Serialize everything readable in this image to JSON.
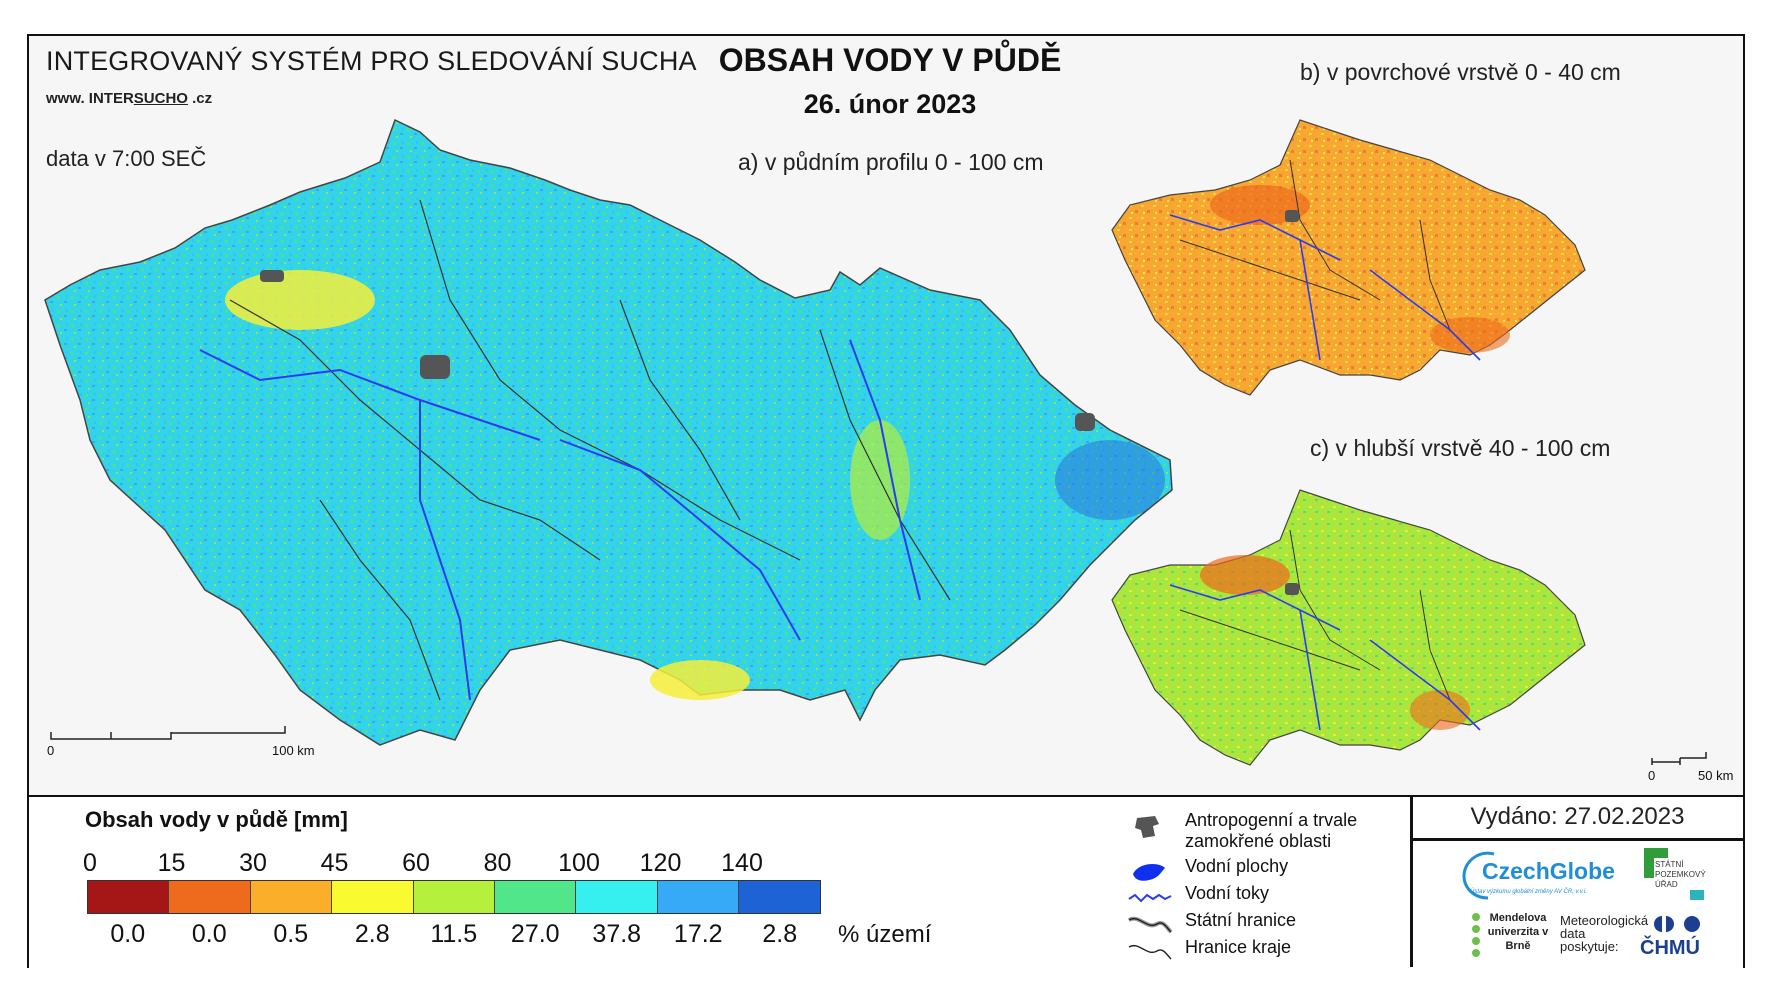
{
  "header": {
    "system_title": "INTEGROVANÝ SYSTÉM PRO SLEDOVÁNÍ SUCHA",
    "website_prefix": "www. INTER",
    "website_brand": "SUCHO",
    "website_suffix": " .cz",
    "data_time": "data v 7:00 SEČ",
    "main_title": "OBSAH VODY V PŮDĚ",
    "date": "26. únor 2023"
  },
  "maps": {
    "a_label": "a) v půdním profilu 0 - 100 cm",
    "b_label": "b) v povrchové vrstvě 0 - 40 cm",
    "c_label": "c) v hlubší vrstvě 40 - 100 cm",
    "scale_main": {
      "zero": "0",
      "end": "100 km"
    },
    "scale_small": {
      "zero": "0",
      "end": "50 km"
    }
  },
  "legend": {
    "title": "Obsah vody v půdě  [mm]",
    "ticks": [
      "0",
      "15",
      "30",
      "45",
      "60",
      "80",
      "100",
      "120",
      "140"
    ],
    "classes": [
      {
        "color": "#a51616",
        "percent": "0.0"
      },
      {
        "color": "#ee6a1d",
        "percent": "0.0"
      },
      {
        "color": "#fbae2a",
        "percent": "0.5"
      },
      {
        "color": "#fafa30",
        "percent": "2.8"
      },
      {
        "color": "#b4f03c",
        "percent": "11.5"
      },
      {
        "color": "#52e68a",
        "percent": "27.0"
      },
      {
        "color": "#36f0f0",
        "percent": "37.8"
      },
      {
        "color": "#36aaf6",
        "percent": "17.2"
      },
      {
        "color": "#1d63d6",
        "percent": "2.8"
      }
    ],
    "percent_unit": "% území"
  },
  "key": {
    "items": [
      {
        "icon": "urban-area-icon",
        "label_1": "Antropogenní a trvale",
        "label_2": "zamokřené oblasti"
      },
      {
        "icon": "water-body-icon",
        "label_1": "Vodní plochy",
        "label_2": ""
      },
      {
        "icon": "river-icon",
        "label_1": "Vodní toky",
        "label_2": ""
      },
      {
        "icon": "state-border-icon",
        "label_1": "Státní hranice",
        "label_2": ""
      },
      {
        "icon": "region-border-icon",
        "label_1": "Hranice kraje",
        "label_2": ""
      }
    ]
  },
  "footer": {
    "issued": "Vydáno: 27.02.2023",
    "logos": {
      "czechglobe": "CzechGlobe",
      "czechglobe_sub": "Ústav výzkumu globální změny AV ČR, v.v.i.",
      "spu": "STÁTNÍ POZEMKOVÝ ÚŘAD",
      "mendel": "Mendelova univerzita v Brně",
      "met_1": "Meteorologická",
      "met_2": "data",
      "met_3": "poskytuje:",
      "chmu": "ČHMÚ"
    }
  },
  "colors": {
    "river": "#2b3cf0",
    "urban": "#555555",
    "water": "#1030f0",
    "czechglobe": "#1f8ed6",
    "chmu": "#1c3f8f",
    "spu_green": "#2f9e3a"
  }
}
